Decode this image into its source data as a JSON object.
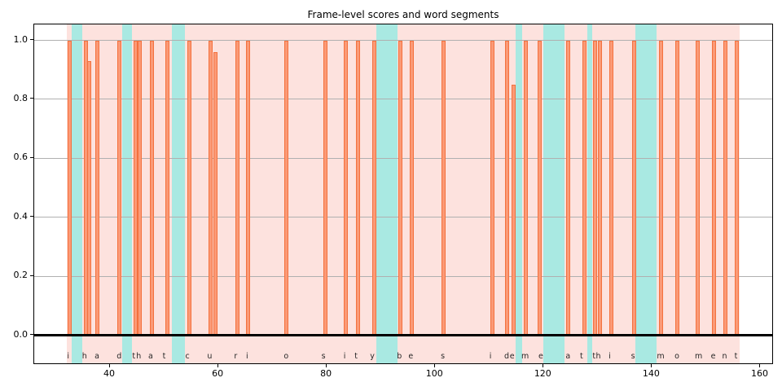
{
  "chart_data": {
    "type": "bar",
    "title": "Frame-level scores and word segments",
    "xlabel": "",
    "ylabel": "",
    "xlim": [
      26.0,
      162.5
    ],
    "ylim": [
      -0.1,
      1.05
    ],
    "x_ticks": [
      40,
      60,
      80,
      100,
      120,
      140,
      160
    ],
    "y_ticks": [
      "0.0",
      "0.2",
      "0.4",
      "0.6",
      "0.8",
      "1.0"
    ],
    "grid": "horizontal-only",
    "legend": "none",
    "bar_width": 0.7,
    "bars": [
      {
        "x": 32.6,
        "score": 1.0
      },
      {
        "x": 35.5,
        "score": 1.0
      },
      {
        "x": 36.2,
        "score": 0.93
      },
      {
        "x": 37.6,
        "score": 1.0
      },
      {
        "x": 41.7,
        "score": 1.0
      },
      {
        "x": 44.7,
        "score": 1.0
      },
      {
        "x": 45.5,
        "score": 1.0
      },
      {
        "x": 47.7,
        "score": 1.0
      },
      {
        "x": 50.6,
        "score": 1.0
      },
      {
        "x": 54.7,
        "score": 1.0
      },
      {
        "x": 58.6,
        "score": 1.0
      },
      {
        "x": 59.5,
        "score": 0.96
      },
      {
        "x": 63.5,
        "score": 1.0
      },
      {
        "x": 65.5,
        "score": 1.0
      },
      {
        "x": 72.6,
        "score": 1.0
      },
      {
        "x": 79.8,
        "score": 1.0
      },
      {
        "x": 83.5,
        "score": 1.0
      },
      {
        "x": 85.7,
        "score": 1.0
      },
      {
        "x": 88.8,
        "score": 1.0
      },
      {
        "x": 93.6,
        "score": 1.0
      },
      {
        "x": 95.7,
        "score": 1.0
      },
      {
        "x": 101.5,
        "score": 1.0
      },
      {
        "x": 110.5,
        "score": 1.0
      },
      {
        "x": 113.3,
        "score": 1.0
      },
      {
        "x": 114.4,
        "score": 0.85
      },
      {
        "x": 116.7,
        "score": 1.0
      },
      {
        "x": 119.3,
        "score": 1.0
      },
      {
        "x": 124.6,
        "score": 1.0
      },
      {
        "x": 127.6,
        "score": 1.0
      },
      {
        "x": 129.5,
        "score": 1.0
      },
      {
        "x": 130.4,
        "score": 1.0
      },
      {
        "x": 132.5,
        "score": 1.0
      },
      {
        "x": 136.7,
        "score": 1.0
      },
      {
        "x": 141.6,
        "score": 1.0
      },
      {
        "x": 144.6,
        "score": 1.0
      },
      {
        "x": 148.5,
        "score": 1.0
      },
      {
        "x": 151.4,
        "score": 1.0
      },
      {
        "x": 153.5,
        "score": 1.0
      },
      {
        "x": 155.6,
        "score": 1.0
      }
    ],
    "word_region": [
      32.0,
      156.2
    ],
    "highlight_segments": [
      [
        33.0,
        34.9
      ],
      [
        42.2,
        44.1
      ],
      [
        51.4,
        53.8
      ],
      [
        89.2,
        93.1
      ],
      [
        114.9,
        116.1
      ],
      [
        120.0,
        123.9
      ],
      [
        128.0,
        128.9
      ],
      [
        137.0,
        140.9
      ]
    ],
    "letters": [
      {
        "ch": "i",
        "x": 32.3
      },
      {
        "ch": "h",
        "x": 35.3
      },
      {
        "ch": "a",
        "x": 37.6
      },
      {
        "ch": "d",
        "x": 41.7
      },
      {
        "ch": "t",
        "x": 44.4
      },
      {
        "ch": "h",
        "x": 45.3
      },
      {
        "ch": "a",
        "x": 47.5
      },
      {
        "ch": "t",
        "x": 50.0
      },
      {
        "ch": "c",
        "x": 54.3
      },
      {
        "ch": "u",
        "x": 58.4
      },
      {
        "ch": "r",
        "x": 63.2
      },
      {
        "ch": "i",
        "x": 65.3
      },
      {
        "ch": "o",
        "x": 72.5
      },
      {
        "ch": "s",
        "x": 79.4
      },
      {
        "ch": "i",
        "x": 83.3
      },
      {
        "ch": "t",
        "x": 85.4
      },
      {
        "ch": "y",
        "x": 88.4
      },
      {
        "ch": "b",
        "x": 93.4
      },
      {
        "ch": "e",
        "x": 95.5
      },
      {
        "ch": "s",
        "x": 101.4
      },
      {
        "ch": "i",
        "x": 110.2
      },
      {
        "ch": "d",
        "x": 113.2
      },
      {
        "ch": "e",
        "x": 114.2
      },
      {
        "ch": "m",
        "x": 116.6
      },
      {
        "ch": "e",
        "x": 119.5
      },
      {
        "ch": "a",
        "x": 124.5
      },
      {
        "ch": "t",
        "x": 127.0
      },
      {
        "ch": "t",
        "x": 129.3
      },
      {
        "ch": "h",
        "x": 130.1
      },
      {
        "ch": "i",
        "x": 132.2
      },
      {
        "ch": "s",
        "x": 136.5
      },
      {
        "ch": "m",
        "x": 141.6
      },
      {
        "ch": "o",
        "x": 144.6
      },
      {
        "ch": "m",
        "x": 148.6
      },
      {
        "ch": "e",
        "x": 151.3
      },
      {
        "ch": "n",
        "x": 153.4
      },
      {
        "ch": "t",
        "x": 155.5
      }
    ],
    "letters_y": -0.072,
    "colors": {
      "bar_fill": "#FB9A77",
      "bar_edge": "#F4713D",
      "word_region_bg": "#FDE2DE",
      "segment_bg": "#A9E9E2",
      "grid": "#B0B0B0",
      "axis": "#000000",
      "background": "#FFFFFF"
    }
  }
}
